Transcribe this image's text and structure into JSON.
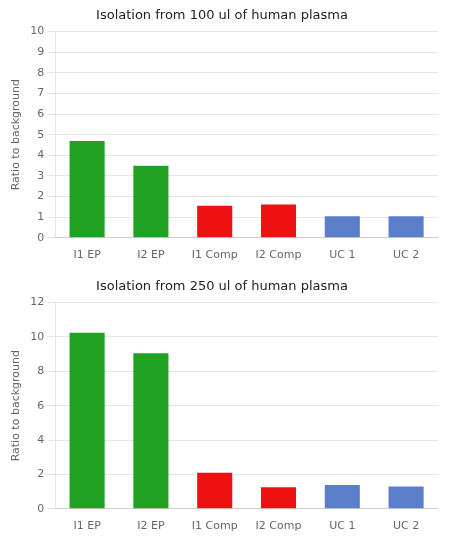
{
  "chart_data": [
    {
      "type": "bar",
      "title": "Isolation from 100 ul of human plasma",
      "categories": [
        "I1 EP",
        "I2 EP",
        "I1 Comp",
        "I2 Comp",
        "UC 1",
        "UC 2"
      ],
      "values": [
        4.7,
        3.5,
        1.55,
        1.62,
        1.05,
        1.05
      ],
      "colors": [
        "#21a121",
        "#21a121",
        "#ee1111",
        "#ee1111",
        "#5b7ec9",
        "#5b7ec9"
      ],
      "ylim": [
        0,
        10
      ],
      "yticks": [
        0,
        1,
        2,
        3,
        4,
        5,
        6,
        7,
        8,
        9,
        10
      ],
      "ylabel": "Ratio to background",
      "grid": true
    },
    {
      "type": "bar",
      "title": "Isolation from 250 ul of human plasma",
      "categories": [
        "I1 EP",
        "I2 EP",
        "I1 Comp",
        "I2 Comp",
        "UC 1",
        "UC 2"
      ],
      "values": [
        10.25,
        9.05,
        2.1,
        1.25,
        1.38,
        1.3
      ],
      "colors": [
        "#21a121",
        "#21a121",
        "#ee1111",
        "#ee1111",
        "#5b7ec9",
        "#5b7ec9"
      ],
      "ylim": [
        0,
        12
      ],
      "yticks": [
        0,
        2,
        4,
        6,
        8,
        10,
        12
      ],
      "ylabel": "Ratio to background",
      "grid": true
    }
  ]
}
